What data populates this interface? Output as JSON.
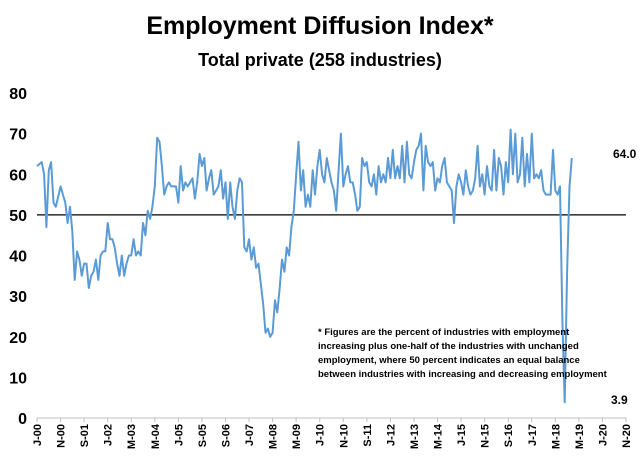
{
  "chart_data": {
    "type": "line",
    "title": "Employment Diffusion Index*",
    "subtitle": "Total private (258 industries)",
    "xlabel": "",
    "ylabel": "",
    "ylim": [
      0,
      80
    ],
    "yticks": [
      "0",
      "10",
      "20",
      "30",
      "40",
      "50",
      "60",
      "70",
      "80"
    ],
    "x_tick_labels": [
      "J-00",
      "N-00",
      "S-01",
      "J-02",
      "M-03",
      "M-04",
      "J-05",
      "S-05",
      "S-06",
      "J-07",
      "M-08",
      "M-09",
      "J-10",
      "N-10",
      "S-11",
      "J-12",
      "M-13",
      "M-14",
      "J-15",
      "N-15",
      "S-16",
      "J-17",
      "M-18",
      "M-19",
      "J-20",
      "N-20"
    ],
    "x_start": "2000-01",
    "x_end": "2020-11",
    "reference_line": {
      "y": 50,
      "color": "#000000"
    },
    "grid": false,
    "legend": "none",
    "series_color": "#5b9bd5",
    "annotations": {
      "last_value_label": "64.0",
      "min_value_label": "3.9",
      "footnote": [
        "* Figures are the percent of industries with employment",
        "increasing plus one-half of the industries with unchanged",
        "employment, where 50 percent indicates an equal balance",
        "between industries with increasing and decreasing employment"
      ]
    },
    "series": [
      {
        "values": [
          [
            0,
            62
          ],
          [
            2,
            63
          ],
          [
            3,
            60
          ],
          [
            4,
            47
          ],
          [
            5,
            61
          ],
          [
            6,
            63
          ],
          [
            7,
            53
          ],
          [
            8,
            52
          ],
          [
            10,
            57
          ],
          [
            11,
            55
          ],
          [
            12,
            53
          ],
          [
            13,
            48
          ],
          [
            14,
            52
          ],
          [
            15,
            46
          ],
          [
            16,
            34
          ],
          [
            17,
            41
          ],
          [
            18,
            39
          ],
          [
            19,
            35
          ],
          [
            20,
            38
          ],
          [
            21,
            38
          ],
          [
            22,
            32
          ],
          [
            23,
            35
          ],
          [
            24,
            36
          ],
          [
            25,
            39
          ],
          [
            26,
            34
          ],
          [
            27,
            40
          ],
          [
            28,
            41
          ],
          [
            29,
            41
          ],
          [
            30,
            48
          ],
          [
            31,
            44
          ],
          [
            32,
            44
          ],
          [
            33,
            42
          ],
          [
            34,
            38
          ],
          [
            35,
            35
          ],
          [
            36,
            40
          ],
          [
            37,
            35
          ],
          [
            38,
            38
          ],
          [
            39,
            40
          ],
          [
            40,
            40
          ],
          [
            41,
            44
          ],
          [
            42,
            40
          ],
          [
            43,
            41
          ],
          [
            44,
            40
          ],
          [
            45,
            48
          ],
          [
            46,
            45
          ],
          [
            47,
            51
          ],
          [
            48,
            49
          ],
          [
            49,
            52
          ],
          [
            50,
            57
          ],
          [
            51,
            69
          ],
          [
            52,
            68
          ],
          [
            53,
            62
          ],
          [
            54,
            55
          ],
          [
            55,
            57
          ],
          [
            56,
            58
          ],
          [
            57,
            57
          ],
          [
            58,
            57
          ],
          [
            59,
            57
          ],
          [
            60,
            53
          ],
          [
            61,
            62
          ],
          [
            62,
            56
          ],
          [
            63,
            58
          ],
          [
            64,
            57
          ],
          [
            65,
            58
          ],
          [
            66,
            59
          ],
          [
            67,
            54
          ],
          [
            68,
            58
          ],
          [
            69,
            65
          ],
          [
            70,
            62
          ],
          [
            71,
            64
          ],
          [
            72,
            56
          ],
          [
            73,
            59
          ],
          [
            74,
            61
          ],
          [
            75,
            55
          ],
          [
            76,
            56
          ],
          [
            77,
            57
          ],
          [
            78,
            61
          ],
          [
            79,
            54
          ],
          [
            80,
            58
          ],
          [
            81,
            49
          ],
          [
            82,
            58
          ],
          [
            83,
            52
          ],
          [
            84,
            49
          ],
          [
            85,
            56
          ],
          [
            86,
            59
          ],
          [
            87,
            58
          ],
          [
            88,
            42
          ],
          [
            89,
            41
          ],
          [
            90,
            44
          ],
          [
            91,
            39
          ],
          [
            92,
            42
          ],
          [
            93,
            37
          ],
          [
            94,
            38
          ],
          [
            95,
            33
          ],
          [
            96,
            28
          ],
          [
            97,
            21
          ],
          [
            98,
            22
          ],
          [
            99,
            20
          ],
          [
            100,
            21
          ],
          [
            101,
            29
          ],
          [
            102,
            26
          ],
          [
            103,
            32
          ],
          [
            104,
            39
          ],
          [
            105,
            36
          ],
          [
            106,
            42
          ],
          [
            107,
            40
          ],
          [
            108,
            47
          ],
          [
            109,
            51
          ],
          [
            110,
            60
          ],
          [
            111,
            68
          ],
          [
            112,
            56
          ],
          [
            113,
            61
          ],
          [
            114,
            52
          ],
          [
            115,
            55
          ],
          [
            116,
            52
          ],
          [
            117,
            61
          ],
          [
            118,
            55
          ],
          [
            119,
            62
          ],
          [
            120,
            66
          ],
          [
            121,
            60
          ],
          [
            122,
            58
          ],
          [
            123,
            64
          ],
          [
            124,
            61
          ],
          [
            125,
            58
          ],
          [
            126,
            56
          ],
          [
            127,
            51
          ],
          [
            128,
            61
          ],
          [
            129,
            70
          ],
          [
            130,
            57
          ],
          [
            131,
            60
          ],
          [
            132,
            62
          ],
          [
            133,
            58
          ],
          [
            134,
            58
          ],
          [
            135,
            55
          ],
          [
            136,
            51
          ],
          [
            137,
            52
          ],
          [
            138,
            64
          ],
          [
            139,
            62
          ],
          [
            140,
            63
          ],
          [
            141,
            58
          ],
          [
            142,
            57
          ],
          [
            143,
            60
          ],
          [
            144,
            55
          ],
          [
            145,
            62
          ],
          [
            146,
            58
          ],
          [
            147,
            60
          ],
          [
            148,
            58
          ],
          [
            149,
            64
          ],
          [
            150,
            59
          ],
          [
            151,
            66
          ],
          [
            152,
            59
          ],
          [
            153,
            62
          ],
          [
            154,
            59
          ],
          [
            155,
            67
          ],
          [
            156,
            58
          ],
          [
            157,
            68
          ],
          [
            158,
            60
          ],
          [
            159,
            59
          ],
          [
            160,
            63
          ],
          [
            161,
            66
          ],
          [
            162,
            67
          ],
          [
            163,
            70
          ],
          [
            164,
            56
          ],
          [
            165,
            67
          ],
          [
            166,
            63
          ],
          [
            167,
            62
          ],
          [
            168,
            63
          ],
          [
            169,
            56
          ],
          [
            170,
            59
          ],
          [
            171,
            58
          ],
          [
            172,
            62
          ],
          [
            173,
            64
          ],
          [
            174,
            58
          ],
          [
            175,
            57
          ],
          [
            176,
            56
          ],
          [
            177,
            48
          ],
          [
            178,
            57
          ],
          [
            179,
            60
          ],
          [
            180,
            58
          ],
          [
            181,
            55
          ],
          [
            182,
            61
          ],
          [
            183,
            57
          ],
          [
            184,
            55
          ],
          [
            185,
            56
          ],
          [
            186,
            59
          ],
          [
            187,
            67
          ],
          [
            188,
            57
          ],
          [
            189,
            60
          ],
          [
            190,
            55
          ],
          [
            191,
            62
          ],
          [
            192,
            57
          ],
          [
            193,
            56
          ],
          [
            194,
            66
          ],
          [
            195,
            56
          ],
          [
            196,
            64
          ],
          [
            197,
            62
          ],
          [
            198,
            55
          ],
          [
            199,
            63
          ],
          [
            200,
            58
          ],
          [
            201,
            71
          ],
          [
            202,
            60
          ],
          [
            203,
            70
          ],
          [
            204,
            58
          ],
          [
            205,
            60
          ],
          [
            206,
            69
          ],
          [
            207,
            57
          ],
          [
            208,
            65
          ],
          [
            209,
            58
          ],
          [
            210,
            70
          ],
          [
            211,
            59
          ],
          [
            212,
            60
          ],
          [
            213,
            59
          ],
          [
            214,
            61
          ],
          [
            215,
            56
          ],
          [
            216,
            55
          ],
          [
            217,
            55
          ],
          [
            218,
            55
          ],
          [
            219,
            66
          ],
          [
            220,
            56
          ],
          [
            221,
            55
          ],
          [
            222,
            57
          ],
          [
            223,
            24
          ],
          [
            224,
            3.9
          ],
          [
            225,
            36
          ],
          [
            226,
            57
          ],
          [
            227,
            64
          ]
        ]
      }
    ]
  }
}
